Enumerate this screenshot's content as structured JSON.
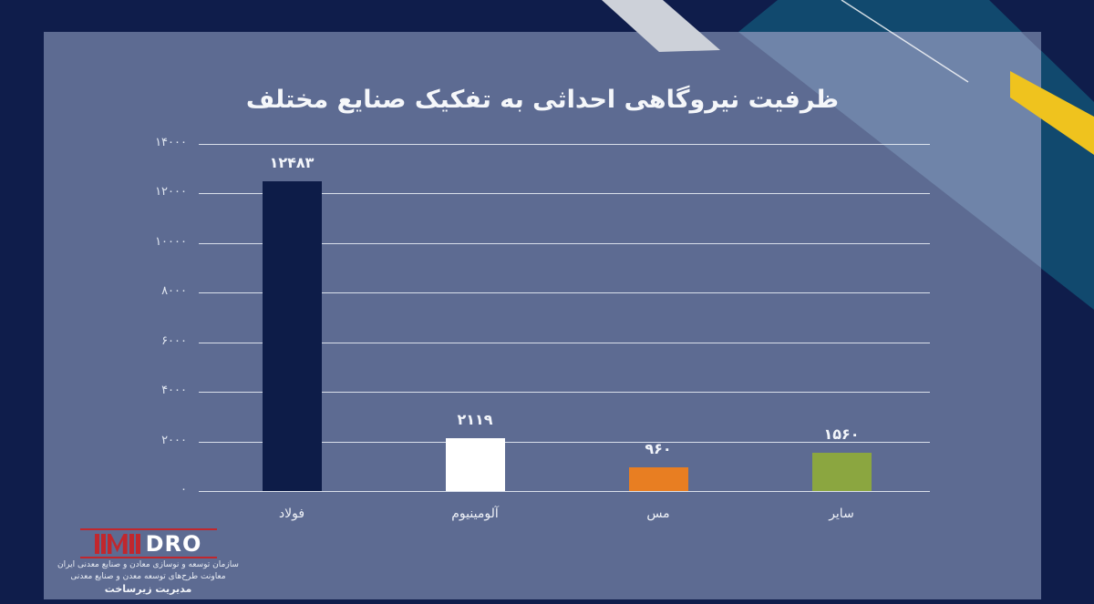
{
  "slide": {
    "title": "ظرفیت نیروگاهی احداثی به تفکیک صنایع مختلف"
  },
  "chart_data": {
    "type": "bar",
    "title": "ظرفیت نیروگاهی احداثی به تفکیک صنایع مختلف",
    "categories": [
      "فولاد",
      "آلومینیوم",
      "مس",
      "سایر"
    ],
    "category_keys": [
      "steel",
      "aluminum",
      "copper",
      "other"
    ],
    "values": [
      12483,
      2119,
      960,
      1560
    ],
    "value_labels": [
      "۱۲۴۸۳",
      "۲۱۱۹",
      "۹۶۰",
      "۱۵۶۰"
    ],
    "bar_colors": [
      "#0d1c48",
      "#ffffff",
      "#e87e22",
      "#8ba640"
    ],
    "xlabel": "",
    "ylabel": "",
    "ylim": [
      0,
      14000
    ],
    "grid": true,
    "legend": false,
    "yticks": [
      {
        "label": "۱۴۰۰۰",
        "value": 14000
      },
      {
        "label": "۱۲۰۰۰",
        "value": 12000
      },
      {
        "label": "۱۰۰۰۰",
        "value": 10000
      },
      {
        "label": "۸۰۰۰",
        "value": 8000
      },
      {
        "label": "۶۰۰۰",
        "value": 6000
      },
      {
        "label": "۴۰۰۰",
        "value": 4000
      },
      {
        "label": "۲۰۰۰",
        "value": 2000
      },
      {
        "label": "۰",
        "value": 0
      }
    ]
  },
  "logo": {
    "imi": "IMI",
    "dro": "DRO",
    "line1": "سازمان توسعه و نوسازی معادن و صنایع معدنی ایران",
    "line2": "معاونت طرح‌های توسعه معدن و صنایع معدنی",
    "line3": "مدیریت زیرساخت"
  },
  "colors": {
    "background_navy": "#0f1d4b",
    "panel_slate": "#5d6b92",
    "teal_band": "#11496e",
    "silver_stripe": "#cdd1d9",
    "yellow_stripe": "#efc31e",
    "logo_red": "#c1272d",
    "gridline": "#f0f4fa"
  }
}
